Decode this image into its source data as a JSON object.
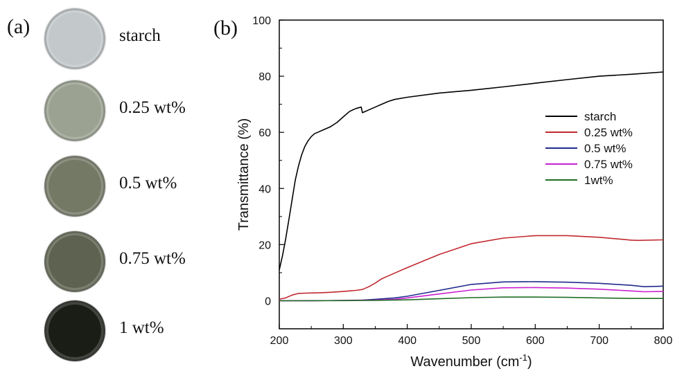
{
  "panel_a": {
    "label": "(a)",
    "films": [
      {
        "label": "starch",
        "color": "#c3c9cb"
      },
      {
        "label": "0.25 wt%",
        "color": "#9ba291"
      },
      {
        "label": "0.5 wt%",
        "color": "#747966"
      },
      {
        "label": "0.75 wt%",
        "color": "#5d6350"
      },
      {
        "label": "1 wt%",
        "color": "#1a1d16"
      }
    ]
  },
  "chart_data": {
    "type": "line",
    "panel_label": "(b)",
    "xlabel": "Wavenumber (cm",
    "xlabel_sup": "-1",
    "xlabel_suffix": ")",
    "ylabel": "Transmittance (%)",
    "xlim": [
      200,
      800
    ],
    "ylim": [
      -10,
      100
    ],
    "xticks": [
      200,
      300,
      400,
      500,
      600,
      700,
      800
    ],
    "yticks": [
      0,
      20,
      40,
      60,
      80,
      100
    ],
    "grid": false,
    "legend_position": "right-middle",
    "series": [
      {
        "name": "starch",
        "color": "#000000",
        "x": [
          200,
          205,
          210,
          215,
          220,
          225,
          230,
          235,
          240,
          245,
          250,
          255,
          260,
          270,
          280,
          290,
          300,
          310,
          320,
          328,
          330,
          332,
          340,
          350,
          360,
          370,
          380,
          400,
          450,
          500,
          550,
          600,
          650,
          700,
          750,
          800
        ],
        "y": [
          11,
          16,
          22,
          29,
          36,
          43,
          48,
          52,
          55,
          57,
          58.5,
          59.5,
          60,
          61,
          62,
          63.5,
          65.5,
          67.5,
          68.5,
          69,
          67,
          67.2,
          68,
          69,
          70,
          71,
          71.7,
          72.5,
          74,
          75,
          76.2,
          77.5,
          78.8,
          80,
          80.7,
          81.5
        ]
      },
      {
        "name": "0.25 wt%",
        "color": "#c0282d",
        "x": [
          200,
          210,
          220,
          230,
          240,
          260,
          280,
          300,
          320,
          330,
          340,
          350,
          360,
          380,
          400,
          450,
          500,
          550,
          600,
          650,
          700,
          750,
          760,
          800
        ],
        "y": [
          0.5,
          1,
          2,
          2.6,
          2.7,
          2.8,
          3,
          3.3,
          3.7,
          4,
          5,
          6.3,
          7.8,
          9.8,
          11.8,
          16.5,
          20.3,
          22.3,
          23.2,
          23.2,
          22.6,
          21.6,
          21.5,
          21.7
        ]
      },
      {
        "name": "0.5 wt%",
        "color": "#1f2a8c",
        "x": [
          200,
          250,
          300,
          330,
          350,
          380,
          400,
          450,
          500,
          550,
          600,
          650,
          700,
          750,
          770,
          800
        ],
        "y": [
          0,
          0,
          0.1,
          0.2,
          0.5,
          1,
          1.6,
          3.7,
          5.8,
          6.7,
          6.8,
          6.6,
          6.2,
          5.5,
          5,
          5.2
        ]
      },
      {
        "name": "0.75 wt%",
        "color": "#c81fd0",
        "x": [
          200,
          250,
          300,
          350,
          380,
          400,
          450,
          500,
          550,
          600,
          650,
          700,
          750,
          770,
          800
        ],
        "y": [
          0,
          0,
          0.1,
          0.2,
          0.5,
          1,
          2.4,
          3.8,
          4.6,
          4.7,
          4.5,
          4.1,
          3.5,
          3.2,
          3.3
        ]
      },
      {
        "name": "1wt%",
        "color": "#1f6e23",
        "x": [
          200,
          300,
          350,
          400,
          450,
          500,
          550,
          600,
          650,
          700,
          750,
          800
        ],
        "y": [
          0,
          0.05,
          0.1,
          0.3,
          0.7,
          1.1,
          1.3,
          1.3,
          1.2,
          1,
          0.8,
          0.8
        ]
      }
    ]
  }
}
